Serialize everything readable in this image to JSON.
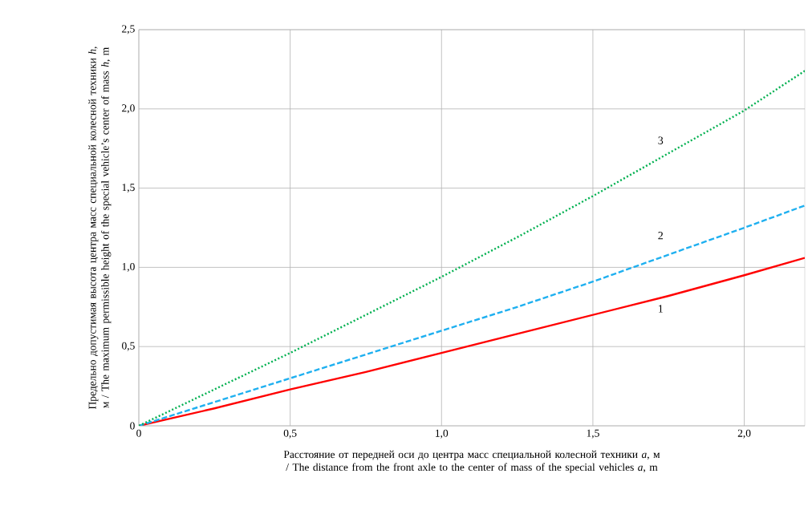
{
  "chart_data": {
    "type": "line",
    "xlabel": "Расстояние от передней оси до центра масс специальной колесной техники *a*, м / The distance from the front axle to the center of mass of the special vehicles *a*, m",
    "ylabel": "Предельно допустимая высота центра масс специальной колесной техники *h*, м / The maximum permissible height of the special vehicle’s center of mass *h*, m",
    "x": [
      0,
      0.25,
      0.5,
      0.75,
      1.0,
      1.25,
      1.5,
      1.75,
      2.0,
      2.2
    ],
    "series": [
      {
        "name": "1",
        "color": "#ff0000",
        "line_style": "solid",
        "values": [
          0,
          0.11,
          0.23,
          0.34,
          0.46,
          0.58,
          0.7,
          0.82,
          0.95,
          1.06
        ]
      },
      {
        "name": "2",
        "color": "#1fb0f0",
        "line_style": "dashed",
        "values": [
          0,
          0.15,
          0.3,
          0.45,
          0.6,
          0.75,
          0.91,
          1.08,
          1.25,
          1.39
        ]
      },
      {
        "name": "3",
        "color": "#00b050",
        "line_style": "dotted",
        "values": [
          0,
          0.23,
          0.46,
          0.7,
          0.94,
          1.19,
          1.45,
          1.72,
          1.99,
          2.24
        ]
      }
    ],
    "xlim": [
      0,
      2.2
    ],
    "ylim": [
      0,
      2.5
    ],
    "xticks": [
      0,
      {
        "value": 0.5,
        "label": "0,5"
      },
      {
        "value": 1.0,
        "label": "1,0"
      },
      {
        "value": 1.5,
        "label": "1,5"
      },
      {
        "value": 2.0,
        "label": "2,0"
      }
    ],
    "yticks": [
      0,
      {
        "value": 0.5,
        "label": "0,5"
      },
      {
        "value": 1.0,
        "label": "1,0"
      },
      {
        "value": 1.5,
        "label": "1,5"
      },
      {
        "value": 2.0,
        "label": "2,0"
      },
      {
        "value": 2.5,
        "label": "2,5"
      }
    ],
    "grid": true,
    "legend": false,
    "marker": "none"
  }
}
